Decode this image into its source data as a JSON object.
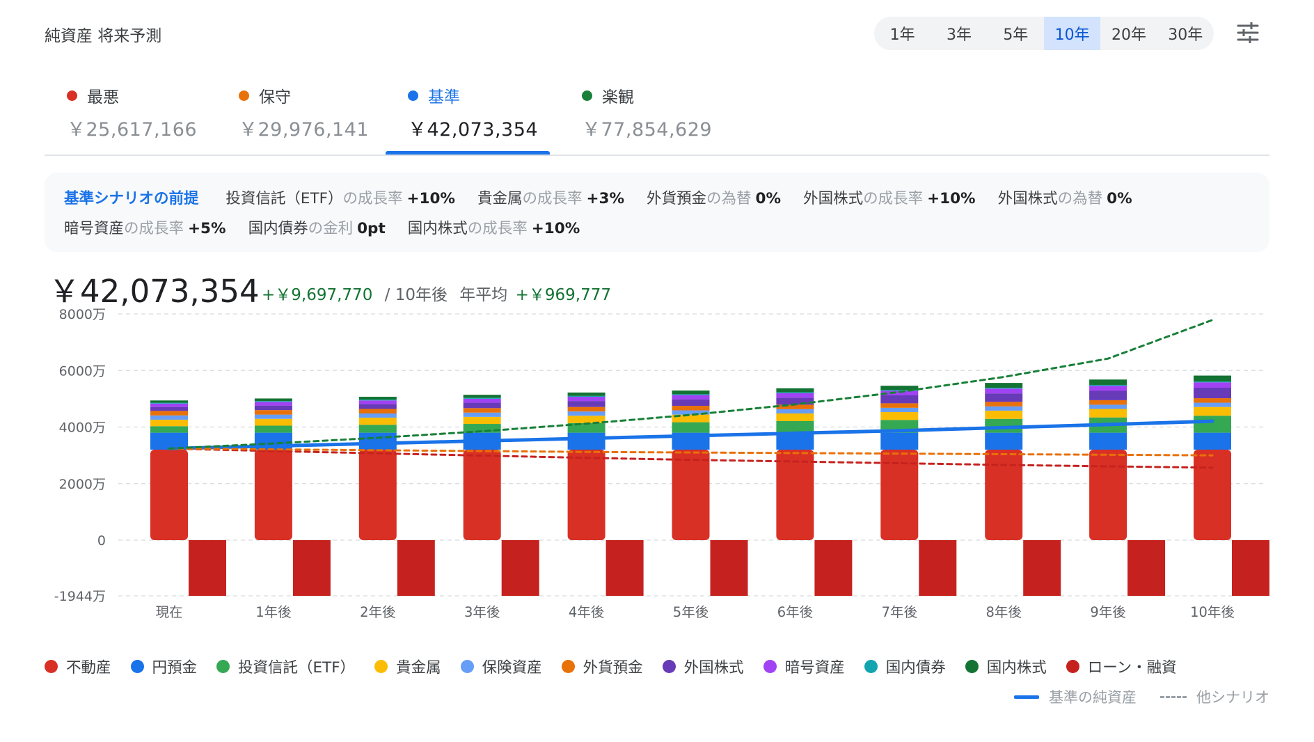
{
  "header": {
    "title": "純資産 将来予測"
  },
  "ranges": {
    "items": [
      "1年",
      "3年",
      "5年",
      "10年",
      "20年",
      "30年"
    ],
    "active": 3
  },
  "scenarios": [
    {
      "name": "最悪",
      "value": "￥25,617,166",
      "color": "#d93025"
    },
    {
      "name": "保守",
      "value": "￥29,976,141",
      "color": "#e8710a"
    },
    {
      "name": "基準",
      "value": "￥42,073,354",
      "color": "#1a73e8"
    },
    {
      "name": "楽観",
      "value": "￥77,854,629",
      "color": "#188038"
    }
  ],
  "active_scenario": 2,
  "assumptions": {
    "title": "基準シナリオの前提",
    "items": [
      {
        "name": "投資信託（ETF）",
        "kind": "の成長率",
        "value": "+10%"
      },
      {
        "name": "貴金属",
        "kind": "の成長率",
        "value": "+3%"
      },
      {
        "name": "外貨預金",
        "kind": "の為替",
        "value": "0%"
      },
      {
        "name": "外国株式",
        "kind": "の成長率",
        "value": "+10%"
      },
      {
        "name": "外国株式",
        "kind": "の為替",
        "value": "0%"
      },
      {
        "name": "暗号資産",
        "kind": "の成長率",
        "value": "+5%"
      },
      {
        "name": "国内債券",
        "kind": "の金利",
        "value": "0pt"
      },
      {
        "name": "国内株式",
        "kind": "の成長率",
        "value": "+10%"
      }
    ]
  },
  "summary": {
    "value": "￥42,073,354",
    "change": "+￥9,697,770",
    "period": "/ 10年後",
    "avg_label": "年平均",
    "avg_value": "+￥969,777"
  },
  "chart_data": {
    "type": "bar",
    "stacked": true,
    "unit": "万円",
    "categories": [
      "現在",
      "1年後",
      "2年後",
      "3年後",
      "4年後",
      "5年後",
      "6年後",
      "7年後",
      "8年後",
      "9年後",
      "10年後"
    ],
    "y_ticks": [
      {
        "value": 8000,
        "label": "8000万"
      },
      {
        "value": 6000,
        "label": "6000万"
      },
      {
        "value": 4000,
        "label": "4000万"
      },
      {
        "value": 2000,
        "label": "2000万"
      },
      {
        "value": 0,
        "label": "0"
      },
      {
        "value": -1944,
        "label": "-1944万"
      }
    ],
    "ylim": [
      -1944,
      8000
    ],
    "grid": true,
    "series": [
      {
        "name": "不動産",
        "color": "#d93025",
        "values": [
          3200,
          3200,
          3200,
          3200,
          3200,
          3200,
          3200,
          3200,
          3200,
          3200,
          3200
        ]
      },
      {
        "name": "円預金",
        "color": "#1a73e8",
        "values": [
          600,
          600,
          600,
          600,
          600,
          600,
          600,
          600,
          600,
          600,
          600
        ]
      },
      {
        "name": "投資信託（ETF）",
        "color": "#34a853",
        "values": [
          230,
          250,
          280,
          310,
          340,
          370,
          410,
          450,
          490,
          540,
          600
        ]
      },
      {
        "name": "貴金属",
        "color": "#fbbc04",
        "values": [
          230,
          240,
          250,
          250,
          260,
          270,
          270,
          280,
          290,
          300,
          310
        ]
      },
      {
        "name": "保険資産",
        "color": "#669df6",
        "values": [
          150,
          150,
          150,
          150,
          150,
          150,
          150,
          150,
          150,
          150,
          150
        ]
      },
      {
        "name": "外貨預金",
        "color": "#e8710a",
        "values": [
          160,
          160,
          160,
          160,
          160,
          160,
          160,
          160,
          160,
          160,
          160
        ]
      },
      {
        "name": "外国株式",
        "color": "#673ab7",
        "values": [
          140,
          160,
          170,
          190,
          210,
          230,
          250,
          280,
          300,
          330,
          370
        ]
      },
      {
        "name": "暗号資産",
        "color": "#a142f4",
        "values": [
          120,
          130,
          130,
          140,
          150,
          150,
          160,
          160,
          170,
          180,
          190
        ]
      },
      {
        "name": "国内債券",
        "color": "#12a4af",
        "values": [
          30,
          30,
          30,
          30,
          30,
          30,
          30,
          30,
          30,
          30,
          30
        ]
      },
      {
        "name": "国内株式",
        "color": "#137333",
        "values": [
          80,
          90,
          100,
          110,
          120,
          130,
          140,
          150,
          170,
          190,
          210
        ]
      },
      {
        "name": "ローン・融資",
        "color": "#c5221f",
        "values": [
          -1944,
          -1944,
          -1944,
          -1944,
          -1944,
          -1944,
          -1944,
          -1944,
          -1944,
          -1944,
          -1944
        ]
      }
    ],
    "lines": [
      {
        "name": "基準の純資産",
        "color": "#1a73e8",
        "style": "solid",
        "values": [
          3238,
          3330,
          3420,
          3510,
          3600,
          3690,
          3780,
          3870,
          3980,
          4090,
          4207
        ]
      },
      {
        "name": "最悪",
        "color": "#c5221f",
        "style": "dashed",
        "values": [
          3238,
          3150,
          3070,
          2990,
          2910,
          2840,
          2780,
          2720,
          2660,
          2610,
          2562
        ]
      },
      {
        "name": "保守",
        "color": "#e8710a",
        "style": "dashed",
        "values": [
          3238,
          3210,
          3180,
          3150,
          3120,
          3100,
          3080,
          3060,
          3040,
          3020,
          2998
        ]
      },
      {
        "name": "楽観",
        "color": "#188038",
        "style": "dashed",
        "values": [
          3238,
          3420,
          3620,
          3850,
          4120,
          4430,
          4800,
          5240,
          5770,
          6420,
          7785
        ]
      }
    ]
  },
  "legend": {
    "items": [
      {
        "name": "不動産",
        "color": "#d93025"
      },
      {
        "name": "円預金",
        "color": "#1a73e8"
      },
      {
        "name": "投資信託（ETF）",
        "color": "#34a853"
      },
      {
        "name": "貴金属",
        "color": "#fbbc04"
      },
      {
        "name": "保険資産",
        "color": "#669df6"
      },
      {
        "name": "外貨預金",
        "color": "#e8710a"
      },
      {
        "name": "外国株式",
        "color": "#673ab7"
      },
      {
        "name": "暗号資産",
        "color": "#a142f4"
      },
      {
        "name": "国内債券",
        "color": "#12a4af"
      },
      {
        "name": "国内株式",
        "color": "#137333"
      },
      {
        "name": "ローン・融資",
        "color": "#c5221f"
      }
    ],
    "line_base": "基準の純資産",
    "line_other": "他シナリオ"
  }
}
